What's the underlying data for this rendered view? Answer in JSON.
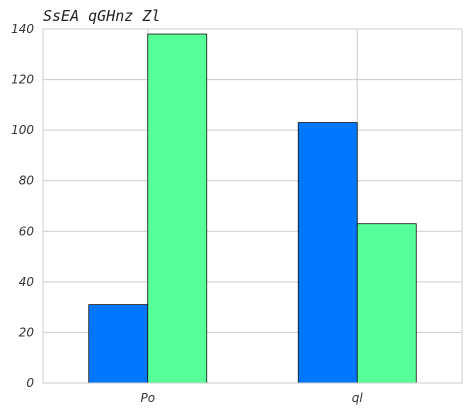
{
  "chart_data": {
    "type": "bar",
    "title": "SsEA qGHnz Zl",
    "xlabel": "",
    "ylabel": "",
    "categories": [
      "Po",
      "ql"
    ],
    "series": [
      {
        "values": [
          31,
          103
        ],
        "color": "#0077ff"
      },
      {
        "values": [
          138,
          63
        ],
        "color": "#57ff98"
      }
    ],
    "ylim": [
      0,
      140
    ],
    "yticks": [
      0,
      20,
      40,
      60,
      80,
      100,
      120,
      140
    ],
    "grid": true,
    "legend": "none"
  }
}
